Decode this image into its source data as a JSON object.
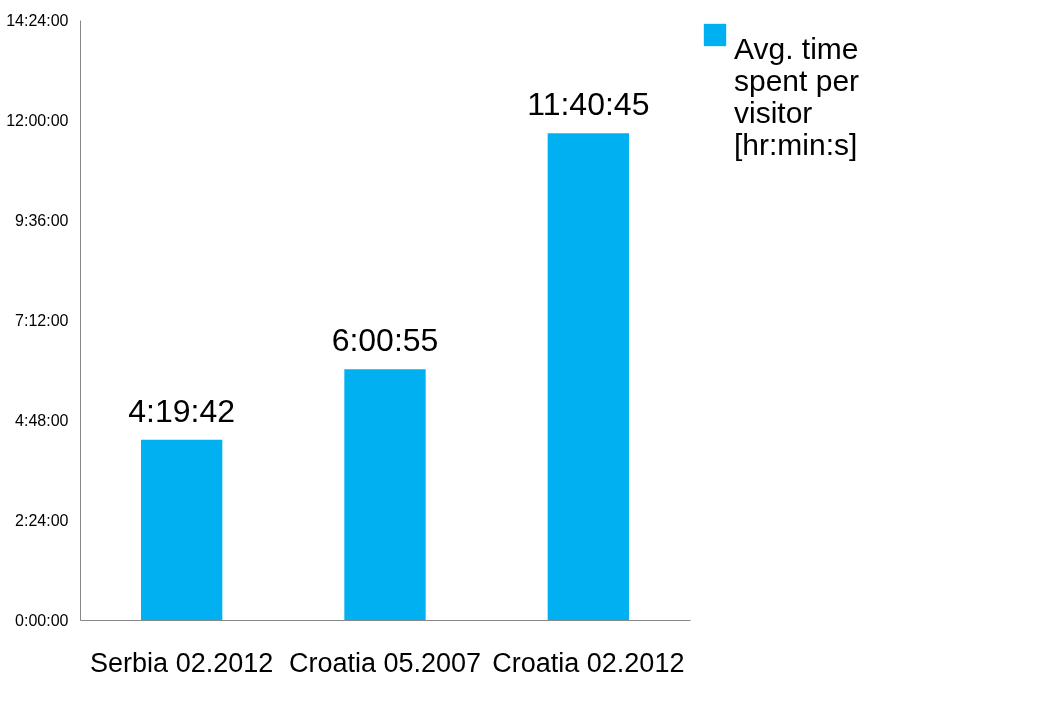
{
  "chart_data": {
    "type": "bar",
    "categories": [
      "Serbia 02.2012",
      "Croatia 05.2007",
      "Croatia 02.2012"
    ],
    "series": [
      {
        "name": "Avg. time spent per visitor [hr:min:s]",
        "color": "#00b0f0",
        "values": [
          4.3283,
          6.0153,
          11.6792
        ],
        "value_labels": [
          "4:19:42",
          "6:00:55",
          "11:40:45"
        ]
      }
    ],
    "ylim": [
      0,
      14.4
    ],
    "yticks": [
      {
        "value": 0,
        "label": "0:00:00"
      },
      {
        "value": 2.4,
        "label": "2:24:00"
      },
      {
        "value": 4.8,
        "label": "4:48:00"
      },
      {
        "value": 7.2,
        "label": "7:12:00"
      },
      {
        "value": 9.6,
        "label": "9:36:00"
      },
      {
        "value": 12,
        "label": "12:00:00"
      },
      {
        "value": 14.4,
        "label": "14:24:00"
      }
    ],
    "grid": false,
    "legend": "top right"
  }
}
